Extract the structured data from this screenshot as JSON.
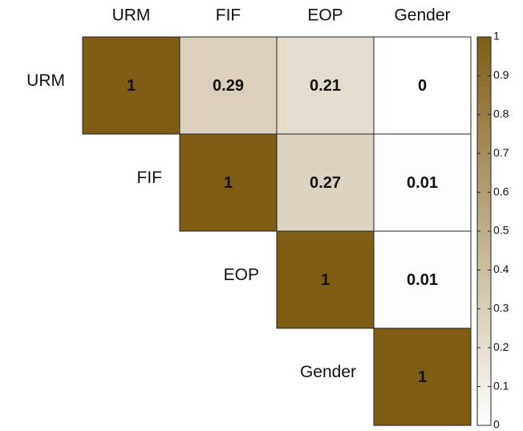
{
  "chart_data": {
    "type": "heatmap",
    "x_categories": [
      "URM",
      "FIF",
      "EOP",
      "Gender"
    ],
    "y_categories": [
      "URM",
      "FIF",
      "EOP",
      "Gender"
    ],
    "values": [
      [
        1,
        0.29,
        0.21,
        0
      ],
      [
        null,
        1,
        0.27,
        0.01
      ],
      [
        null,
        null,
        1,
        0.01
      ],
      [
        null,
        null,
        null,
        1
      ]
    ],
    "colormap": [
      "#ffffff",
      "#7f5d15"
    ],
    "zlim": [
      0,
      1
    ],
    "zticks": [
      0,
      0.1,
      0.2,
      0.3,
      0.4,
      0.5,
      0.6,
      0.7,
      0.8,
      0.9,
      1
    ]
  }
}
